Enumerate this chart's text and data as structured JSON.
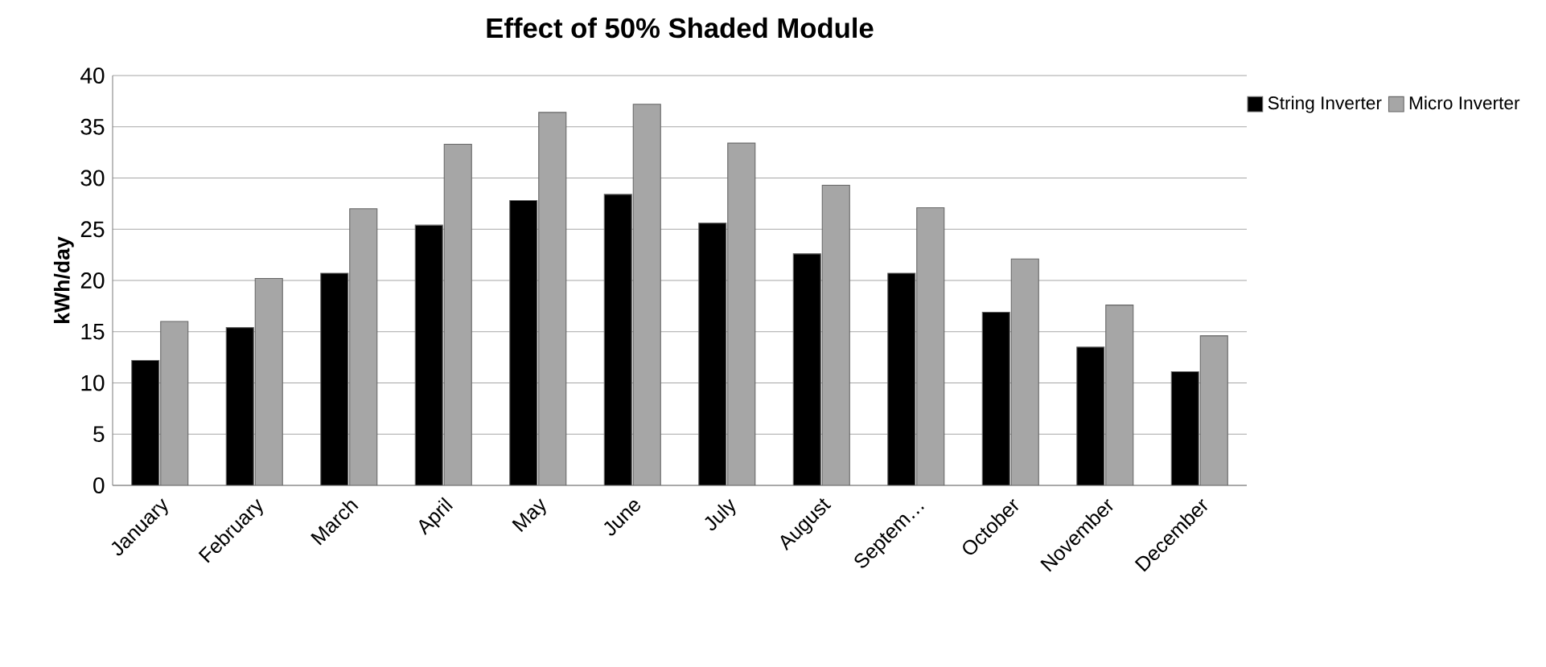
{
  "chart_data": {
    "type": "bar",
    "title": "Effect of 50% Shaded Module",
    "ylabel": "kWh/day",
    "categories": [
      "January",
      "February",
      "March",
      "April",
      "May",
      "June",
      "July",
      "August",
      "Septem…",
      "October",
      "November",
      "December"
    ],
    "series": [
      {
        "name": "String Inverter",
        "color": "#000000",
        "values": [
          12.2,
          15.4,
          20.7,
          25.4,
          27.8,
          28.4,
          25.6,
          22.6,
          20.7,
          16.9,
          13.5,
          11.1
        ]
      },
      {
        "name": "Micro  Inverter",
        "color": "#a6a6a6",
        "values": [
          16.0,
          20.2,
          27.0,
          33.3,
          36.4,
          37.2,
          33.4,
          29.3,
          27.1,
          22.1,
          17.6,
          14.6
        ]
      }
    ],
    "ylim": [
      0,
      40
    ],
    "yticks": [
      0,
      5,
      10,
      15,
      20,
      25,
      30,
      35,
      40
    ],
    "grid": "y",
    "legend": "top right"
  }
}
